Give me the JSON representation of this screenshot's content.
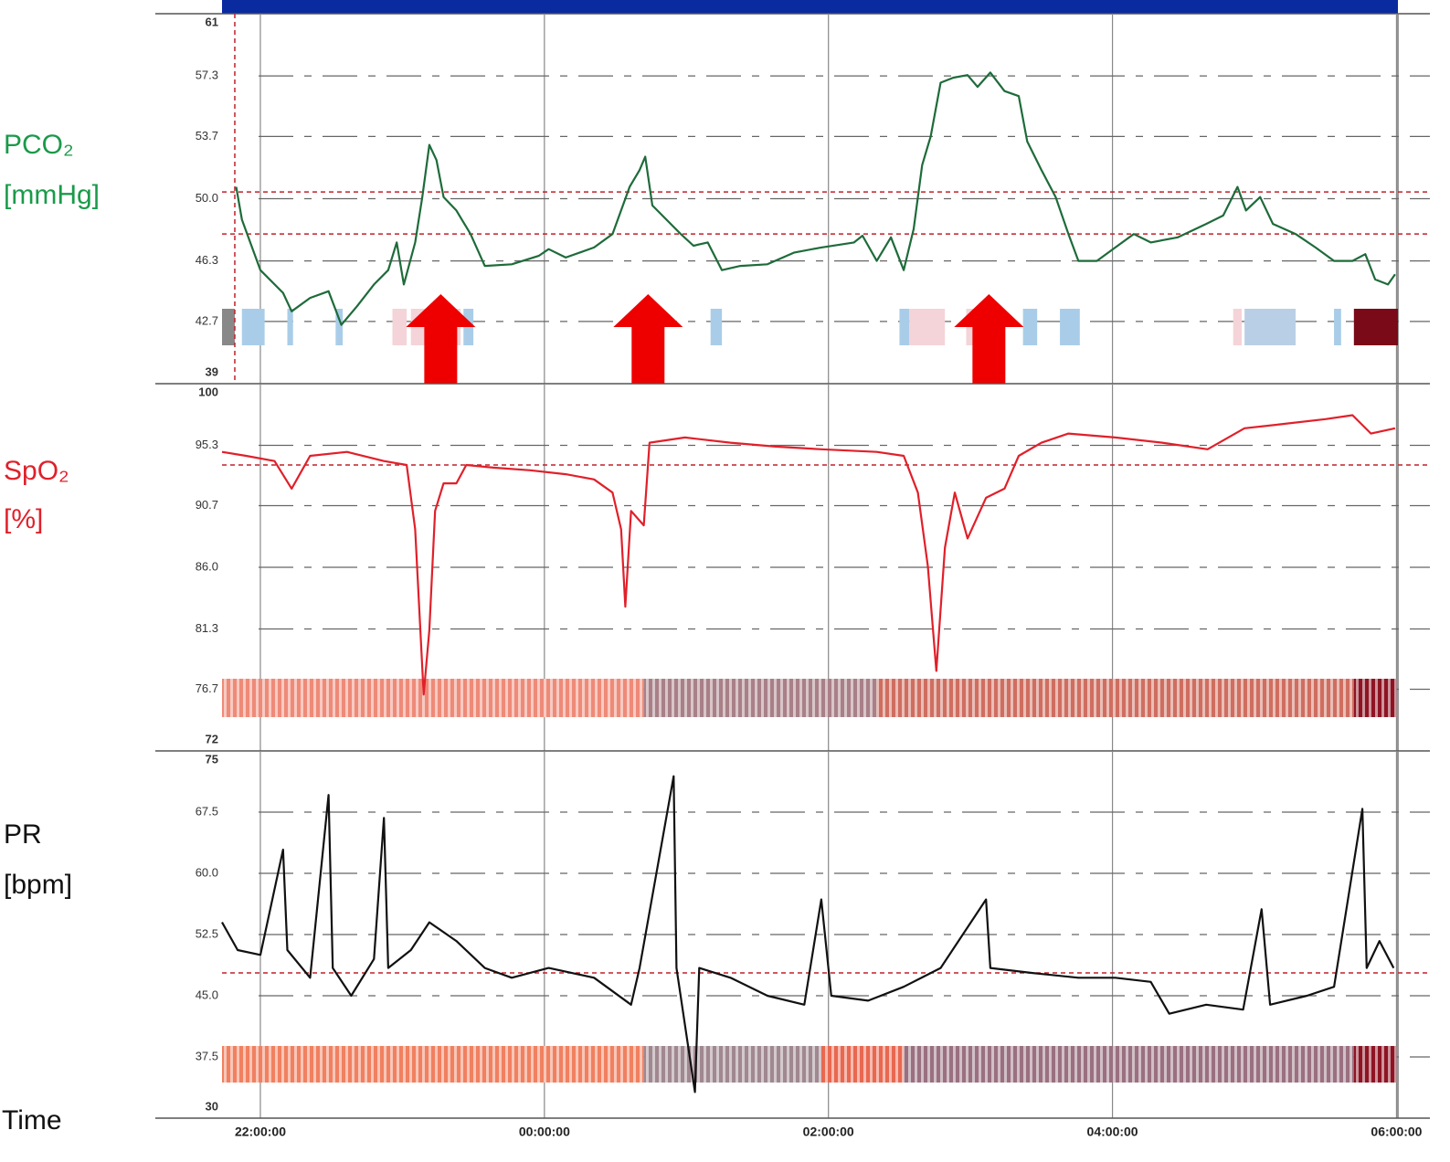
{
  "chart_data": [
    {
      "type": "line",
      "title": [
        "PCO₂",
        "[mmHg]"
      ],
      "title_color": "#1a9a4a",
      "tick_color": "#1a7a30",
      "color": "#1e6b3a",
      "ylim": [
        39,
        61
      ],
      "yticks": [
        39,
        42.7,
        46.3,
        {
          "value": 50,
          "label": "50.0"
        },
        53.7,
        57.3,
        61
      ],
      "xlim": [
        21.73,
        30.01
      ],
      "x": [
        21.83,
        21.87,
        22.0,
        22.16,
        22.22,
        22.35,
        22.48,
        22.57,
        22.68,
        22.8,
        22.9,
        22.96,
        23.01,
        23.09,
        23.14,
        23.19,
        23.24,
        23.29,
        23.38,
        23.48,
        23.58,
        23.77,
        23.96,
        24.03,
        24.15,
        24.35,
        24.48,
        24.6,
        24.67,
        24.71,
        24.76,
        24.86,
        24.96,
        25.05,
        25.15,
        25.25,
        25.38,
        25.57,
        25.76,
        25.95,
        26.18,
        26.24,
        26.34,
        26.44,
        26.53,
        26.6,
        26.66,
        26.72,
        26.79,
        26.88,
        26.98,
        27.05,
        27.14,
        27.24,
        27.34,
        27.4,
        27.5,
        27.6,
        27.69,
        27.76,
        27.89,
        28.02,
        28.15,
        28.27,
        28.46,
        28.66,
        28.78,
        28.88,
        28.94,
        29.04,
        29.13,
        29.29,
        29.43,
        29.56,
        29.69,
        29.78,
        29.85,
        29.94,
        29.99
      ],
      "values": [
        50.7,
        48.75,
        45.75,
        44.4,
        43.3,
        44.1,
        44.5,
        42.5,
        43.6,
        44.9,
        45.75,
        47.4,
        44.9,
        47.4,
        50.1,
        53.2,
        52.3,
        50.1,
        49.3,
        47.9,
        46.0,
        46.1,
        46.6,
        47.0,
        46.5,
        47.1,
        47.9,
        50.7,
        51.7,
        52.5,
        49.6,
        48.75,
        47.9,
        47.2,
        47.4,
        45.75,
        46.0,
        46.1,
        46.8,
        47.1,
        47.4,
        47.8,
        46.3,
        47.7,
        45.75,
        48.2,
        52.0,
        53.7,
        56.9,
        57.2,
        57.35,
        56.65,
        57.5,
        56.4,
        56.1,
        53.4,
        51.7,
        50.1,
        47.9,
        46.3,
        46.3,
        47.1,
        47.9,
        47.4,
        47.7,
        48.5,
        49.0,
        50.7,
        49.3,
        50.1,
        48.5,
        47.9,
        47.1,
        46.3,
        46.3,
        46.7,
        45.2,
        44.9,
        45.5
      ],
      "reference_color": "#c0202a",
      "reference_y": [
        50.4,
        47.9
      ],
      "reference_x": 21.82,
      "arrows_x": [
        23.27,
        24.73,
        27.13
      ],
      "arrow_color": "#ee0000",
      "events": [
        {
          "start": 21.73,
          "end": 21.82,
          "color": "#888888"
        },
        {
          "start": 21.87,
          "end": 22.03,
          "color": "#a9cde8"
        },
        {
          "start": 22.19,
          "end": 22.23,
          "color": "#a9cde8"
        },
        {
          "start": 22.53,
          "end": 22.58,
          "color": "#a9cde8"
        },
        {
          "start": 22.93,
          "end": 23.03,
          "color": "#f4d4d8"
        },
        {
          "start": 23.06,
          "end": 23.41,
          "color": "#f4d4d8"
        },
        {
          "start": 23.43,
          "end": 23.5,
          "color": "#a9cde8"
        },
        {
          "start": 25.17,
          "end": 25.25,
          "color": "#a9cde8"
        },
        {
          "start": 26.5,
          "end": 26.57,
          "color": "#a9cde8"
        },
        {
          "start": 26.57,
          "end": 26.82,
          "color": "#f4d4d8"
        },
        {
          "start": 26.97,
          "end": 27.11,
          "color": "#f4d4d8"
        },
        {
          "start": 27.37,
          "end": 27.47,
          "color": "#a9cde8"
        },
        {
          "start": 27.63,
          "end": 27.77,
          "color": "#a9cde8"
        },
        {
          "start": 28.85,
          "end": 28.91,
          "color": "#f4d4d8"
        },
        {
          "start": 28.93,
          "end": 29.29,
          "color": "#b9cfe6"
        },
        {
          "start": 29.56,
          "end": 29.61,
          "color": "#a9cde8"
        },
        {
          "start": 29.7,
          "end": 30.01,
          "color": "#7a0a18"
        }
      ]
    },
    {
      "type": "line",
      "title": [
        "SpO₂",
        "[%]"
      ],
      "title_color": "#e0202a",
      "tick_color": "#d01a28",
      "color": "#e0202a",
      "ylim": [
        72,
        100
      ],
      "yticks": [
        72,
        76.7,
        81.3,
        {
          "value": 86,
          "label": "86.0"
        },
        90.7,
        95.3,
        100
      ],
      "xlim": [
        21.73,
        30.01
      ],
      "x": [
        21.73,
        21.9,
        22.1,
        22.22,
        22.35,
        22.61,
        22.87,
        23.03,
        23.09,
        23.13,
        23.15,
        23.19,
        23.23,
        23.29,
        23.38,
        23.45,
        23.64,
        23.9,
        24.15,
        24.35,
        24.48,
        24.54,
        24.57,
        24.61,
        24.7,
        24.74,
        24.99,
        25.31,
        25.63,
        25.95,
        26.34,
        26.53,
        26.63,
        26.7,
        26.76,
        26.82,
        26.89,
        26.98,
        27.11,
        27.24,
        27.34,
        27.5,
        27.69,
        28.02,
        28.35,
        28.67,
        28.93,
        29.18,
        29.5,
        29.69,
        29.82,
        29.99
      ],
      "values": [
        94.8,
        94.5,
        94.1,
        92.0,
        94.5,
        94.8,
        94.1,
        93.8,
        88.9,
        80.5,
        76.3,
        81.2,
        90.3,
        92.4,
        92.4,
        93.8,
        93.6,
        93.4,
        93.1,
        92.7,
        91.7,
        88.9,
        83.0,
        90.3,
        89.2,
        95.5,
        95.9,
        95.5,
        95.2,
        95.0,
        94.8,
        94.5,
        91.7,
        86.1,
        78.1,
        87.5,
        91.7,
        88.2,
        91.3,
        92.0,
        94.5,
        95.5,
        96.2,
        95.9,
        95.5,
        95.0,
        96.6,
        96.9,
        97.3,
        97.6,
        96.2,
        96.6
      ],
      "reference_color": "#c0202a",
      "reference_y": [
        93.8
      ],
      "bands": [
        {
          "start": 21.73,
          "end": 24.7,
          "color": "#ee8a78"
        },
        {
          "start": 24.7,
          "end": 26.34,
          "color": "#a98088"
        },
        {
          "start": 26.34,
          "end": 29.7,
          "color": "#cf6e60"
        },
        {
          "start": 29.7,
          "end": 30.0,
          "color": "#8e1424"
        }
      ]
    },
    {
      "type": "line",
      "title": [
        "PR",
        "[bpm]"
      ],
      "title_color": "#111111",
      "tick_color": "#111111",
      "color": "#111111",
      "ylim": [
        30,
        75
      ],
      "yticks": [
        30,
        37.5,
        {
          "value": 45,
          "label": "45.0"
        },
        52.5,
        {
          "value": 60,
          "label": "60.0"
        },
        67.5,
        75
      ],
      "xlim": [
        21.73,
        30.01
      ],
      "xticks": [
        {
          "value": 22,
          "label": "22:00:00"
        },
        {
          "value": 24,
          "label": "00:00:00"
        },
        {
          "value": 26,
          "label": "02:00:00"
        },
        {
          "value": 28,
          "label": "04:00:00"
        },
        {
          "value": 30,
          "label": "06:00:00"
        }
      ],
      "xlabel": "Time",
      "x": [
        21.73,
        21.84,
        22.0,
        22.16,
        22.19,
        22.35,
        22.48,
        22.51,
        22.64,
        22.8,
        22.87,
        22.9,
        23.06,
        23.19,
        23.38,
        23.58,
        23.77,
        24.03,
        24.35,
        24.61,
        24.67,
        24.91,
        24.93,
        25.06,
        25.09,
        25.31,
        25.57,
        25.83,
        25.95,
        26.02,
        26.28,
        26.53,
        26.79,
        27.11,
        27.14,
        27.43,
        27.76,
        28.02,
        28.27,
        28.4,
        28.66,
        28.92,
        29.05,
        29.11,
        29.37,
        29.56,
        29.76,
        29.79,
        29.88,
        29.98
      ],
      "values": [
        54.0,
        50.6,
        50.0,
        62.9,
        50.6,
        47.2,
        69.6,
        48.4,
        45.0,
        49.5,
        66.8,
        48.4,
        50.6,
        54.0,
        51.7,
        48.4,
        47.2,
        48.4,
        47.2,
        43.9,
        48.4,
        71.9,
        48.4,
        33.2,
        48.4,
        47.2,
        45.0,
        43.9,
        56.8,
        45.0,
        44.4,
        46.1,
        48.4,
        56.8,
        48.4,
        47.8,
        47.2,
        47.2,
        46.7,
        42.8,
        43.9,
        43.3,
        55.6,
        43.9,
        45.0,
        46.1,
        67.9,
        48.4,
        51.7,
        48.4
      ],
      "reference_color": "#c0202a",
      "reference_y": [
        47.8
      ],
      "bands": [
        {
          "start": 21.73,
          "end": 24.7,
          "color": "#f08060"
        },
        {
          "start": 24.7,
          "end": 25.95,
          "color": "#a08890"
        },
        {
          "start": 25.95,
          "end": 26.53,
          "color": "#e86850"
        },
        {
          "start": 26.53,
          "end": 29.7,
          "color": "#9a7080"
        },
        {
          "start": 29.7,
          "end": 30.0,
          "color": "#8e1424"
        }
      ]
    }
  ]
}
